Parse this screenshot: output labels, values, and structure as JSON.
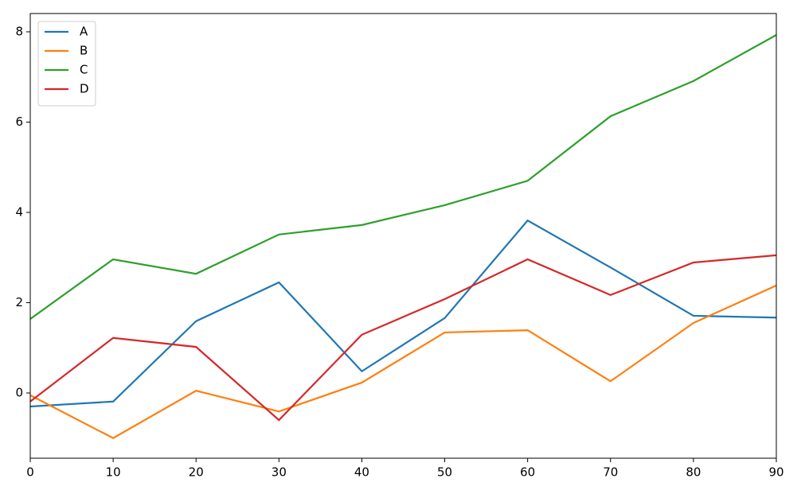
{
  "chart_data": {
    "type": "line",
    "x": [
      0,
      10,
      20,
      30,
      40,
      50,
      60,
      70,
      80,
      90
    ],
    "series": [
      {
        "name": "A",
        "color": "#1f77b4",
        "values": [
          -0.3,
          -0.19,
          1.59,
          2.45,
          0.48,
          1.66,
          3.82,
          2.78,
          1.71,
          1.67
        ]
      },
      {
        "name": "B",
        "color": "#ff7f0e",
        "values": [
          -0.05,
          -1.0,
          0.05,
          -0.41,
          0.23,
          1.34,
          1.39,
          0.26,
          1.55,
          2.38
        ]
      },
      {
        "name": "C",
        "color": "#2ca02c",
        "values": [
          1.64,
          2.96,
          2.64,
          3.51,
          3.72,
          4.16,
          4.7,
          6.13,
          6.91,
          7.93
        ]
      },
      {
        "name": "D",
        "color": "#d62728",
        "values": [
          -0.19,
          1.22,
          1.02,
          -0.6,
          1.29,
          2.08,
          2.96,
          2.17,
          2.89,
          3.05
        ]
      }
    ],
    "xlim": [
      0,
      90
    ],
    "xticks": [
      0,
      10,
      20,
      30,
      40,
      50,
      60,
      70,
      80,
      90
    ],
    "ylim": [
      -1.445,
      8.405
    ],
    "yticks": [
      0,
      2,
      4,
      6,
      8
    ],
    "legend": "upper left"
  }
}
